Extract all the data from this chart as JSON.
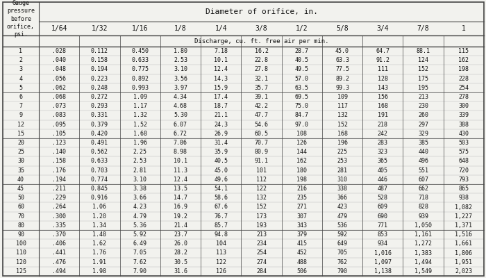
{
  "title_top": "Diameter of orifice, in.",
  "subtitle": "Discharge, cu. ft. free air per min.",
  "col_headers": [
    "1/64",
    "1/32",
    "1/16",
    "1/8",
    "1/4",
    "3/8",
    "1/2",
    "5/8",
    "3/4",
    "7/8",
    "1"
  ],
  "rows": [
    [
      1,
      ".028",
      "0.112",
      "0.450",
      "1.80",
      "7.18",
      "16.2",
      "28.7",
      "45.0",
      "64.7",
      "88.1",
      "115"
    ],
    [
      2,
      ".040",
      "0.158",
      "0.633",
      "2.53",
      "10.1",
      "22.8",
      "40.5",
      "63.3",
      "91.2",
      "124",
      "162"
    ],
    [
      3,
      ".048",
      "0.194",
      "0.775",
      "3.10",
      "12.4",
      "27.8",
      "49.5",
      "77.5",
      "111",
      "152",
      "198"
    ],
    [
      4,
      ".056",
      "0.223",
      "0.892",
      "3.56",
      "14.3",
      "32.1",
      "57.0",
      "89.2",
      "128",
      "175",
      "228"
    ],
    [
      5,
      ".062",
      "0.248",
      "0.993",
      "3.97",
      "15.9",
      "35.7",
      "63.5",
      "99.3",
      "143",
      "195",
      "254"
    ],
    [
      6,
      ".068",
      "0.272",
      "1.09",
      "4.34",
      "17.4",
      "39.1",
      "69.5",
      "109",
      "156",
      "213",
      "278"
    ],
    [
      7,
      ".073",
      "0.293",
      "1.17",
      "4.68",
      "18.7",
      "42.2",
      "75.0",
      "117",
      "168",
      "230",
      "300"
    ],
    [
      9,
      ".083",
      "0.331",
      "1.32",
      "5.30",
      "21.1",
      "47.7",
      "84.7",
      "132",
      "191",
      "260",
      "339"
    ],
    [
      12,
      ".095",
      "0.379",
      "1.52",
      "6.07",
      "24.3",
      "54.6",
      "97.0",
      "152",
      "218",
      "297",
      "388"
    ],
    [
      15,
      ".105",
      "0.420",
      "1.68",
      "6.72",
      "26.9",
      "60.5",
      "108",
      "168",
      "242",
      "329",
      "430"
    ],
    [
      20,
      ".123",
      "0.491",
      "1.96",
      "7.86",
      "31.4",
      "70.7",
      "126",
      "196",
      "283",
      "385",
      "503"
    ],
    [
      25,
      ".140",
      "0.562",
      "2.25",
      "8.98",
      "35.9",
      "80.9",
      "144",
      "225",
      "323",
      "440",
      "575"
    ],
    [
      30,
      ".158",
      "0.633",
      "2.53",
      "10.1",
      "40.5",
      "91.1",
      "162",
      "253",
      "365",
      "496",
      "648"
    ],
    [
      35,
      ".176",
      "0.703",
      "2.81",
      "11.3",
      "45.0",
      "101",
      "180",
      "281",
      "405",
      "551",
      "720"
    ],
    [
      40,
      ".194",
      "0.774",
      "3.10",
      "12.4",
      "49.6",
      "112",
      "198",
      "310",
      "446",
      "607",
      "793"
    ],
    [
      45,
      ".211",
      "0.845",
      "3.38",
      "13.5",
      "54.1",
      "122",
      "216",
      "338",
      "487",
      "662",
      "865"
    ],
    [
      50,
      ".229",
      "0.916",
      "3.66",
      "14.7",
      "58.6",
      "132",
      "235",
      "366",
      "528",
      "718",
      "938"
    ],
    [
      60,
      ".264",
      "1.06",
      "4.23",
      "16.9",
      "67.6",
      "152",
      "271",
      "423",
      "609",
      "828",
      "1,082"
    ],
    [
      70,
      ".300",
      "1.20",
      "4.79",
      "19.2",
      "76.7",
      "173",
      "307",
      "479",
      "690",
      "939",
      "1,227"
    ],
    [
      80,
      ".335",
      "1.34",
      "5.36",
      "21.4",
      "85.7",
      "193",
      "343",
      "536",
      "771",
      "1,050",
      "1,371"
    ],
    [
      90,
      ".370",
      "1.48",
      "5.92",
      "23.7",
      "94.8",
      "213",
      "379",
      "592",
      "853",
      "1,161",
      "1,516"
    ],
    [
      100,
      ".406",
      "1.62",
      "6.49",
      "26.0",
      "104",
      "234",
      "415",
      "649",
      "934",
      "1,272",
      "1,661"
    ],
    [
      110,
      ".441",
      "1.76",
      "7.05",
      "28.2",
      "113",
      "254",
      "452",
      "705",
      "1,016",
      "1,383",
      "1,806"
    ],
    [
      120,
      ".476",
      "1.91",
      "7.62",
      "30.5",
      "122",
      "274",
      "488",
      "762",
      "1,097",
      "1,494",
      "1,951"
    ],
    [
      125,
      ".494",
      "1.98",
      "7.90",
      "31.6",
      "126",
      "284",
      "506",
      "790",
      "1,138",
      "1,549",
      "2,023"
    ]
  ],
  "group_ends_0idx": [
    4,
    9,
    14,
    19,
    24
  ],
  "bg_color": "#f2f2ee",
  "text_color": "#111111",
  "line_color": "#444444",
  "font_size_data": 6.0,
  "font_size_header": 7.0,
  "font_size_title": 8.0
}
